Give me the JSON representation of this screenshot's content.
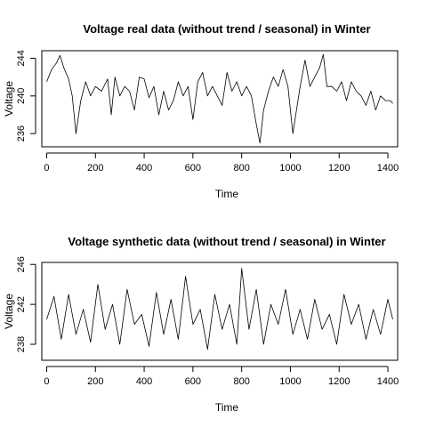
{
  "chart_data": [
    {
      "type": "line",
      "title": "Voltage real data (without trend / seasonal) in Winter",
      "xlabel": "Time",
      "ylabel": "Voltage",
      "xlim": [
        -20,
        1440
      ],
      "ylim": [
        234.6,
        244.8
      ],
      "xticks": [
        0,
        200,
        400,
        600,
        800,
        1000,
        1200,
        1400
      ],
      "yticks": [
        236,
        240,
        244
      ],
      "grid": false,
      "x": [
        0,
        20,
        40,
        55,
        70,
        90,
        105,
        120,
        140,
        160,
        180,
        200,
        225,
        250,
        265,
        280,
        300,
        320,
        340,
        360,
        380,
        400,
        420,
        440,
        460,
        480,
        500,
        520,
        540,
        560,
        580,
        600,
        620,
        640,
        660,
        680,
        700,
        720,
        740,
        760,
        780,
        800,
        820,
        840,
        860,
        875,
        890,
        910,
        930,
        950,
        970,
        990,
        1010,
        1025,
        1040,
        1060,
        1080,
        1100,
        1120,
        1135,
        1150,
        1170,
        1190,
        1210,
        1230,
        1250,
        1270,
        1290,
        1310,
        1330,
        1350,
        1370,
        1390,
        1410,
        1420
      ],
      "y": [
        241.5,
        242.8,
        243.5,
        244.3,
        243.0,
        241.8,
        240.0,
        236.0,
        239.5,
        241.5,
        240.0,
        241.0,
        240.5,
        241.8,
        238.0,
        242.0,
        240.0,
        241.0,
        240.5,
        238.5,
        242.0,
        241.8,
        239.8,
        241.0,
        238.0,
        240.5,
        238.5,
        239.5,
        241.5,
        240.0,
        241.0,
        237.5,
        241.5,
        242.5,
        240.0,
        241.0,
        240.0,
        239.0,
        242.5,
        240.5,
        241.5,
        240.0,
        241.0,
        240.0,
        237.0,
        235.0,
        238.5,
        240.5,
        242.0,
        241.0,
        242.8,
        241.0,
        236.0,
        238.5,
        241.0,
        243.8,
        241.0,
        242.0,
        243.0,
        244.4,
        241.0,
        241.0,
        240.5,
        241.5,
        239.5,
        241.5,
        240.5,
        240.0,
        239.0,
        240.5,
        238.5,
        240.0,
        239.5,
        239.5,
        239.2
      ]
    },
    {
      "type": "line",
      "title": "Voltage synthetic data (without trend / seasonal) in Winter",
      "xlabel": "Time",
      "ylabel": "Voltage",
      "xlim": [
        -20,
        1440
      ],
      "ylim": [
        236.4,
        246.2
      ],
      "xticks": [
        0,
        200,
        400,
        600,
        800,
        1000,
        1200,
        1400
      ],
      "yticks": [
        238,
        242,
        246
      ],
      "grid": false,
      "x": [
        0,
        30,
        60,
        90,
        120,
        150,
        180,
        210,
        240,
        270,
        300,
        330,
        360,
        390,
        420,
        450,
        480,
        510,
        540,
        570,
        600,
        630,
        660,
        690,
        720,
        750,
        780,
        800,
        830,
        860,
        890,
        920,
        950,
        980,
        1010,
        1040,
        1070,
        1100,
        1130,
        1160,
        1190,
        1220,
        1250,
        1280,
        1310,
        1340,
        1370,
        1400,
        1420
      ],
      "y": [
        240.5,
        242.8,
        238.5,
        243.0,
        239.0,
        241.5,
        238.2,
        244.0,
        239.5,
        242.0,
        238.0,
        243.5,
        240.0,
        241.0,
        237.8,
        243.2,
        239.0,
        242.5,
        238.5,
        244.8,
        240.0,
        241.5,
        237.5,
        243.0,
        239.5,
        242.0,
        238.0,
        245.6,
        239.5,
        243.5,
        238.0,
        242.0,
        240.0,
        243.5,
        239.0,
        241.5,
        238.5,
        242.5,
        239.5,
        241.0,
        238.0,
        243.0,
        240.0,
        242.0,
        238.5,
        241.5,
        239.0,
        242.5,
        240.5
      ]
    }
  ]
}
